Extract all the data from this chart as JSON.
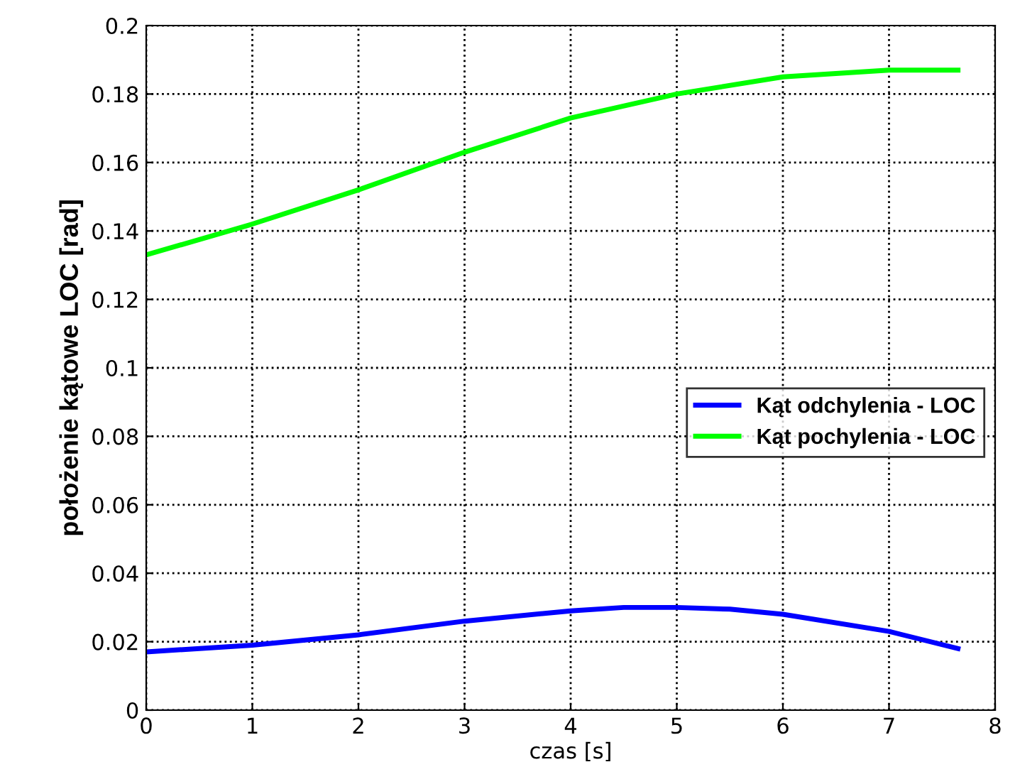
{
  "chart_data": {
    "type": "line",
    "xlabel": "czas [s]",
    "ylabel": "położenie kątowe LOC [rad]",
    "xlim": [
      0,
      8
    ],
    "xticks": [
      0,
      1,
      2,
      3,
      4,
      5,
      6,
      7,
      8
    ],
    "ylim": [
      0,
      0.2
    ],
    "yticks": [
      0,
      0.02,
      0.04,
      0.06,
      0.08,
      0.1,
      0.12,
      0.14,
      0.16,
      0.18,
      0.2
    ],
    "grid": true,
    "legend": "right",
    "line_style": "solid",
    "marker": "none",
    "series": [
      {
        "name": "Kąt odchylenia - LOC",
        "color": "#0000ff",
        "x": [
          0,
          1,
          2,
          3,
          4,
          4.5,
          5,
          5.5,
          6,
          7,
          7.65
        ],
        "values": [
          0.017,
          0.019,
          0.022,
          0.026,
          0.029,
          0.03,
          0.03,
          0.0295,
          0.028,
          0.023,
          0.018
        ]
      },
      {
        "name": "Kąt pochylenia - LOC",
        "color": "#00ff00",
        "x": [
          0,
          1,
          2,
          3,
          4,
          5,
          6,
          7,
          7.65
        ],
        "values": [
          0.133,
          0.142,
          0.152,
          0.163,
          0.173,
          0.18,
          0.185,
          0.187,
          0.187
        ]
      }
    ]
  }
}
